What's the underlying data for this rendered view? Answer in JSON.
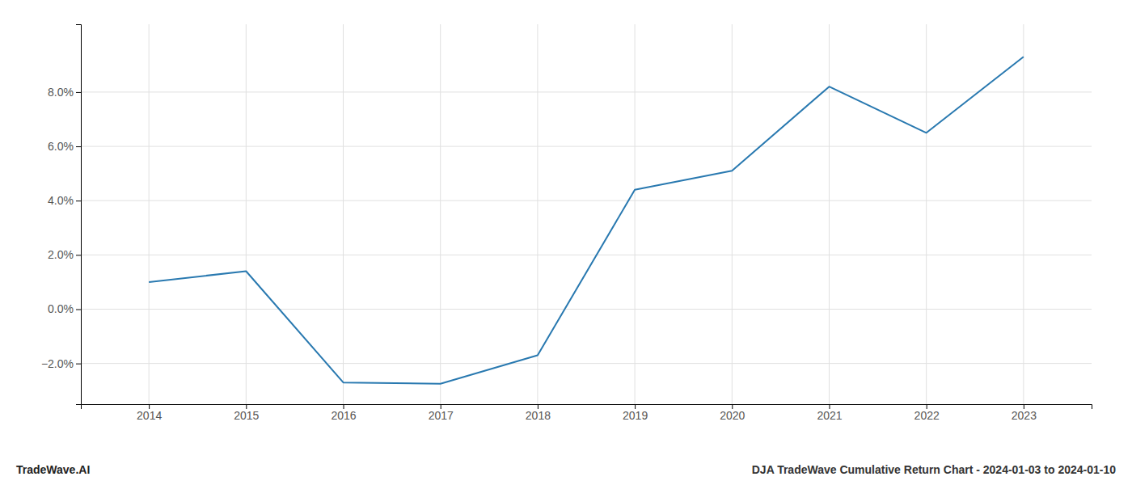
{
  "chart_data": {
    "type": "line",
    "title": "DJA TradeWave Cumulative Return Chart - 2024-01-03 to 2024-01-10",
    "annotations": [
      "TradeWave.AI"
    ],
    "x": [
      2014,
      2015,
      2016,
      2017,
      2018,
      2019,
      2020,
      2021,
      2022,
      2023
    ],
    "values": [
      1.0,
      1.4,
      -2.7,
      -2.75,
      -1.7,
      4.4,
      5.1,
      8.2,
      6.5,
      9.3
    ],
    "color": "#2979b0",
    "xlim": [
      2013.3,
      2023.7
    ],
    "xticks": [
      2014,
      2015,
      2016,
      2017,
      2018,
      2019,
      2020,
      2021,
      2022,
      2023
    ],
    "ylim": [
      -3.5,
      10.5
    ],
    "yticks": [
      {
        "value": -2.0,
        "label": "−2.0%"
      },
      {
        "value": 0.0,
        "label": "0.0%"
      },
      {
        "value": 2.0,
        "label": "2.0%"
      },
      {
        "value": 4.0,
        "label": "4.0%"
      },
      {
        "value": 6.0,
        "label": "6.0%"
      },
      {
        "value": 8.0,
        "label": "8.0%"
      }
    ],
    "grid": true
  }
}
